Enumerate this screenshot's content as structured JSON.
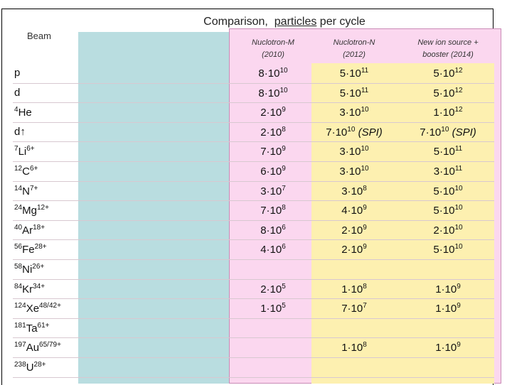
{
  "title": {
    "before": "Comparison,",
    "underlined": "particles",
    "after": "per cycle"
  },
  "table": {
    "header": [
      [
        "Beam"
      ],
      [
        "Nuclotron-M",
        "(2010)"
      ],
      [
        "Nuclotron-N",
        "(2012)"
      ],
      [
        "New ion source  +",
        "booster (2014)"
      ]
    ],
    "rows": [
      {
        "beam": {
          "element": "p"
        },
        "values": [
          {
            "base": "8·10",
            "exp": "10"
          },
          {
            "base": "5·10",
            "exp": "11"
          },
          {
            "base": "5·10",
            "exp": "12"
          }
        ]
      },
      {
        "beam": {
          "element": "d"
        },
        "values": [
          {
            "base": "8·10",
            "exp": "10"
          },
          {
            "base": "5·10",
            "exp": "11"
          },
          {
            "base": "5·10",
            "exp": "12"
          }
        ]
      },
      {
        "beam": {
          "mass": "4",
          "element": "He"
        },
        "values": [
          {
            "base": "2·10",
            "exp": "9"
          },
          {
            "base": "3·10",
            "exp": "10"
          },
          {
            "base": "1·10",
            "exp": "12"
          }
        ]
      },
      {
        "beam": {
          "element": "d↑"
        },
        "values": [
          {
            "base": "2·10",
            "exp": "8"
          },
          {
            "base": "7·10",
            "exp": "10",
            "suffix": " (SPI)"
          },
          {
            "base": "7·10",
            "exp": "10",
            "suffix": " (SPI)"
          }
        ]
      },
      {
        "beam": {
          "mass": "7",
          "element": "Li",
          "charge": "6+"
        },
        "values": [
          {
            "base": "7·10",
            "exp": "9"
          },
          {
            "base": "3·10",
            "exp": "10"
          },
          {
            "base": "5·10",
            "exp": "11"
          }
        ]
      },
      {
        "beam": {
          "mass": "12",
          "element": "C",
          "charge": "6+"
        },
        "values": [
          {
            "base": "6·10",
            "exp": "9"
          },
          {
            "base": "3·10",
            "exp": "10"
          },
          {
            "base": "3·10",
            "exp": "11"
          }
        ]
      },
      {
        "beam": {
          "mass": "14",
          "element": "N",
          "charge": "7+"
        },
        "values": [
          {
            "base": "3·10",
            "exp": "7"
          },
          {
            "base": "3·10",
            "exp": "8"
          },
          {
            "base": "5·10",
            "exp": "10"
          }
        ]
      },
      {
        "beam": {
          "mass": "24",
          "element": "Mg",
          "charge": "12+"
        },
        "values": [
          {
            "base": "7·10",
            "exp": "8"
          },
          {
            "base": "4·10",
            "exp": "9"
          },
          {
            "base": "5·10",
            "exp": "10"
          }
        ]
      },
      {
        "beam": {
          "mass": "40",
          "element": "Ar",
          "charge": "18+"
        },
        "values": [
          {
            "base": "8·10",
            "exp": "6"
          },
          {
            "base": "2·10",
            "exp": "9"
          },
          {
            "base": "2·10",
            "exp": "10"
          }
        ]
      },
      {
        "beam": {
          "mass": "56",
          "element": "Fe",
          "charge": "28+"
        },
        "values": [
          {
            "base": "4·10",
            "exp": "6"
          },
          {
            "base": "2·10",
            "exp": "9"
          },
          {
            "base": "5·10",
            "exp": "10"
          }
        ]
      },
      {
        "beam": {
          "mass": "58",
          "element": "Ni",
          "charge": "26+"
        },
        "values": [
          null,
          null,
          null
        ]
      },
      {
        "beam": {
          "mass": "84",
          "element": "Kr",
          "charge": "34+"
        },
        "values": [
          {
            "base": "2·10",
            "exp": "5"
          },
          {
            "base": "1·10",
            "exp": "8"
          },
          {
            "base": "1·10",
            "exp": "9"
          }
        ]
      },
      {
        "beam": {
          "mass": "124",
          "element": "Xe",
          "charge": "48/42+"
        },
        "values": [
          {
            "base": "1·10",
            "exp": "5"
          },
          {
            "base": "7·10",
            "exp": "7"
          },
          {
            "base": "1·10",
            "exp": "9"
          }
        ]
      },
      {
        "beam": {
          "mass": "181",
          "element": "Ta",
          "charge": "61+"
        },
        "values": [
          null,
          null,
          null
        ]
      },
      {
        "beam": {
          "mass": "197",
          "element": "Au",
          "charge": "65/79+"
        },
        "values": [
          null,
          {
            "base": "1·10",
            "exp": "8"
          },
          {
            "base": "1·10",
            "exp": "9"
          }
        ]
      },
      {
        "beam": {
          "mass": "238",
          "element": "U",
          "charge": "28+"
        },
        "values": [
          null,
          null,
          null
        ]
      }
    ]
  }
}
